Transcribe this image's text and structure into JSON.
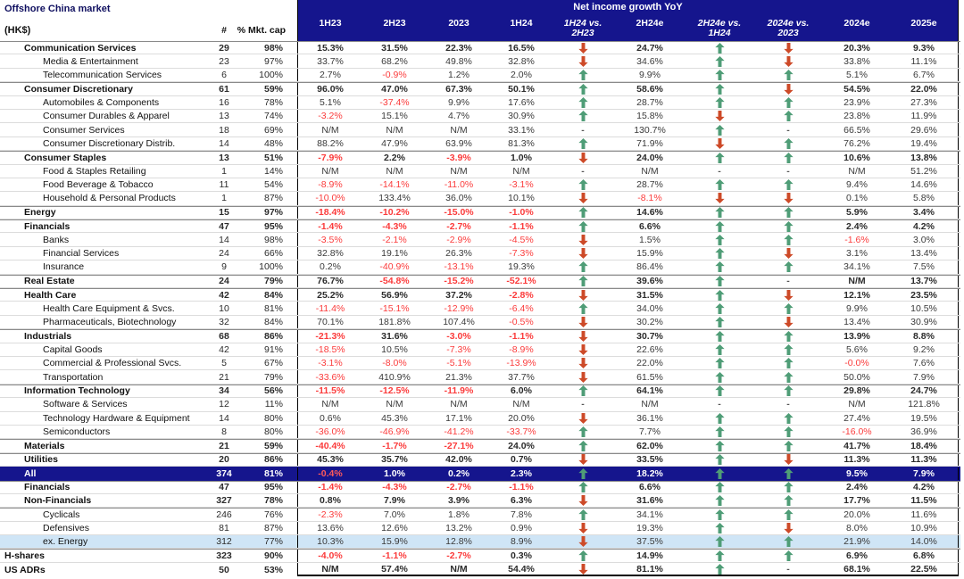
{
  "meta": {
    "title": "Offshore China market",
    "currency_note": "(HK$)",
    "count_header": "#",
    "mktcap_header": "% Mkt. cap",
    "group_header": "Net income growth YoY"
  },
  "colors": {
    "navy": "#15158d",
    "up_arrow_green": "#4f9d77",
    "down_arrow_red": "#cd4a28",
    "negative_red": "#fb3b3b",
    "highlight_light_blue": "#cfe5f6"
  },
  "columns": [
    "1H23",
    "2H23",
    "2023",
    "1H24",
    "1H24 vs.\n2H23",
    "2H24e",
    "2H24e vs.\n1H24",
    "2024e vs.\n2023",
    "2024e",
    "2025e"
  ],
  "vs_column_indexes": [
    4,
    6,
    7
  ],
  "rows": [
    {
      "label": "Communication Services",
      "indent": 1,
      "bold": true,
      "sep": true,
      "n": "29",
      "cap": "98%",
      "cells": [
        "15.3%",
        "31.5%",
        "22.3%",
        "16.5%",
        "down",
        "24.7%",
        "up",
        "down",
        "20.3%",
        "9.3%"
      ]
    },
    {
      "label": "Media & Entertainment",
      "indent": 2,
      "bold": false,
      "sep": false,
      "n": "23",
      "cap": "97%",
      "cells": [
        "33.7%",
        "68.2%",
        "49.8%",
        "32.8%",
        "down",
        "34.6%",
        "up",
        "down",
        "33.8%",
        "11.1%"
      ]
    },
    {
      "label": "Telecommunication Services",
      "indent": 2,
      "bold": false,
      "sep": false,
      "n": "6",
      "cap": "100%",
      "cells": [
        "2.7%",
        "-0.9%",
        "1.2%",
        "2.0%",
        "up",
        "9.9%",
        "up",
        "up",
        "5.1%",
        "6.7%"
      ]
    },
    {
      "label": "Consumer Discretionary",
      "indent": 1,
      "bold": true,
      "sep": true,
      "n": "61",
      "cap": "59%",
      "cells": [
        "96.0%",
        "47.0%",
        "67.3%",
        "50.1%",
        "up",
        "58.6%",
        "up",
        "down",
        "54.5%",
        "22.0%"
      ]
    },
    {
      "label": "Automobiles & Components",
      "indent": 2,
      "bold": false,
      "sep": false,
      "n": "16",
      "cap": "78%",
      "cells": [
        "5.1%",
        "-37.4%",
        "9.9%",
        "17.6%",
        "up",
        "28.7%",
        "up",
        "up",
        "23.9%",
        "27.3%"
      ]
    },
    {
      "label": "Consumer Durables & Apparel",
      "indent": 2,
      "bold": false,
      "sep": false,
      "n": "13",
      "cap": "74%",
      "cells": [
        "-3.2%",
        "15.1%",
        "4.7%",
        "30.9%",
        "up",
        "15.8%",
        "down",
        "up",
        "23.8%",
        "11.9%"
      ]
    },
    {
      "label": "Consumer Services",
      "indent": 2,
      "bold": false,
      "sep": false,
      "n": "18",
      "cap": "69%",
      "cells": [
        "N/M",
        "N/M",
        "N/M",
        "33.1%",
        "dash",
        "130.7%",
        "up",
        "dash",
        "66.5%",
        "29.6%"
      ]
    },
    {
      "label": "Consumer Discretionary Distrib.",
      "indent": 2,
      "bold": false,
      "sep": false,
      "n": "14",
      "cap": "48%",
      "cells": [
        "88.2%",
        "47.9%",
        "63.9%",
        "81.3%",
        "up",
        "71.9%",
        "down",
        "up",
        "76.2%",
        "19.4%"
      ]
    },
    {
      "label": "Consumer Staples",
      "indent": 1,
      "bold": true,
      "sep": true,
      "n": "13",
      "cap": "51%",
      "cells": [
        "-7.9%",
        "2.2%",
        "-3.9%",
        "1.0%",
        "down",
        "24.0%",
        "up",
        "up",
        "10.6%",
        "13.8%"
      ]
    },
    {
      "label": "Food & Staples Retailing",
      "indent": 2,
      "bold": false,
      "sep": false,
      "n": "1",
      "cap": "14%",
      "cells": [
        "N/M",
        "N/M",
        "N/M",
        "N/M",
        "dash",
        "N/M",
        "dash",
        "dash",
        "N/M",
        "51.2%"
      ]
    },
    {
      "label": "Food Beverage & Tobacco",
      "indent": 2,
      "bold": false,
      "sep": false,
      "n": "11",
      "cap": "54%",
      "cells": [
        "-8.9%",
        "-14.1%",
        "-11.0%",
        "-3.1%",
        "up",
        "28.7%",
        "up",
        "up",
        "9.4%",
        "14.6%"
      ]
    },
    {
      "label": "Household & Personal Products",
      "indent": 2,
      "bold": false,
      "sep": false,
      "n": "1",
      "cap": "87%",
      "cells": [
        "-10.0%",
        "133.4%",
        "36.0%",
        "10.1%",
        "down",
        "-8.1%",
        "down",
        "down",
        "0.1%",
        "5.8%"
      ]
    },
    {
      "label": "Energy",
      "indent": 1,
      "bold": true,
      "sep": true,
      "n": "15",
      "cap": "97%",
      "cells": [
        "-18.4%",
        "-10.2%",
        "-15.0%",
        "-1.0%",
        "up",
        "14.6%",
        "up",
        "up",
        "5.9%",
        "3.4%"
      ]
    },
    {
      "label": "Financials",
      "indent": 1,
      "bold": true,
      "sep": true,
      "n": "47",
      "cap": "95%",
      "cells": [
        "-1.4%",
        "-4.3%",
        "-2.7%",
        "-1.1%",
        "up",
        "6.6%",
        "up",
        "up",
        "2.4%",
        "4.2%"
      ]
    },
    {
      "label": "Banks",
      "indent": 2,
      "bold": false,
      "sep": false,
      "n": "14",
      "cap": "98%",
      "cells": [
        "-3.5%",
        "-2.1%",
        "-2.9%",
        "-4.5%",
        "down",
        "1.5%",
        "up",
        "up",
        "-1.6%",
        "3.0%"
      ]
    },
    {
      "label": "Financial Services",
      "indent": 2,
      "bold": false,
      "sep": false,
      "n": "24",
      "cap": "66%",
      "cells": [
        "32.8%",
        "19.1%",
        "26.3%",
        "-7.3%",
        "down",
        "15.9%",
        "up",
        "down",
        "3.1%",
        "13.4%"
      ]
    },
    {
      "label": "Insurance",
      "indent": 2,
      "bold": false,
      "sep": false,
      "n": "9",
      "cap": "100%",
      "cells": [
        "0.2%",
        "-40.9%",
        "-13.1%",
        "19.3%",
        "up",
        "86.4%",
        "up",
        "up",
        "34.1%",
        "7.5%"
      ]
    },
    {
      "label": "Real Estate",
      "indent": 1,
      "bold": true,
      "sep": true,
      "n": "24",
      "cap": "79%",
      "cells": [
        "76.7%",
        "-54.8%",
        "-15.2%",
        "-52.1%",
        "up",
        "39.6%",
        "up",
        "dash",
        "N/M",
        "13.7%"
      ]
    },
    {
      "label": "Health Care",
      "indent": 1,
      "bold": true,
      "sep": true,
      "n": "42",
      "cap": "84%",
      "cells": [
        "25.2%",
        "56.9%",
        "37.2%",
        "-2.8%",
        "down",
        "31.5%",
        "up",
        "down",
        "12.1%",
        "23.5%"
      ]
    },
    {
      "label": "Health Care Equipment & Svcs.",
      "indent": 2,
      "bold": false,
      "sep": false,
      "n": "10",
      "cap": "81%",
      "cells": [
        "-11.4%",
        "-15.1%",
        "-12.9%",
        "-6.4%",
        "up",
        "34.0%",
        "up",
        "up",
        "9.9%",
        "10.5%"
      ]
    },
    {
      "label": "Pharmaceuticals, Biotechnology",
      "indent": 2,
      "bold": false,
      "sep": false,
      "n": "32",
      "cap": "84%",
      "cells": [
        "70.1%",
        "181.8%",
        "107.4%",
        "-0.5%",
        "down",
        "30.2%",
        "up",
        "down",
        "13.4%",
        "30.9%"
      ]
    },
    {
      "label": "Industrials",
      "indent": 1,
      "bold": true,
      "sep": true,
      "n": "68",
      "cap": "86%",
      "cells": [
        "-21.3%",
        "31.6%",
        "-3.0%",
        "-1.1%",
        "down",
        "30.7%",
        "up",
        "up",
        "13.9%",
        "8.8%"
      ]
    },
    {
      "label": "Capital Goods",
      "indent": 2,
      "bold": false,
      "sep": false,
      "n": "42",
      "cap": "91%",
      "cells": [
        "-18.5%",
        "10.5%",
        "-7.3%",
        "-8.9%",
        "down",
        "22.6%",
        "up",
        "up",
        "5.6%",
        "9.2%"
      ]
    },
    {
      "label": "Commercial & Professional Svcs.",
      "indent": 2,
      "bold": false,
      "sep": false,
      "n": "5",
      "cap": "67%",
      "cells": [
        "-3.1%",
        "-8.0%",
        "-5.1%",
        "-13.9%",
        "down",
        "22.0%",
        "up",
        "up",
        "-0.0%",
        "7.6%"
      ]
    },
    {
      "label": "Transportation",
      "indent": 2,
      "bold": false,
      "sep": false,
      "n": "21",
      "cap": "79%",
      "cells": [
        "-33.6%",
        "410.9%",
        "21.3%",
        "37.7%",
        "down",
        "61.5%",
        "up",
        "up",
        "50.0%",
        "7.9%"
      ]
    },
    {
      "label": "Information Technology",
      "indent": 1,
      "bold": true,
      "sep": true,
      "n": "34",
      "cap": "56%",
      "cells": [
        "-11.5%",
        "-12.5%",
        "-11.9%",
        "6.0%",
        "up",
        "64.1%",
        "up",
        "up",
        "29.8%",
        "24.7%"
      ]
    },
    {
      "label": "Software & Services",
      "indent": 2,
      "bold": false,
      "sep": false,
      "n": "12",
      "cap": "11%",
      "cells": [
        "N/M",
        "N/M",
        "N/M",
        "N/M",
        "dash",
        "N/M",
        "dash",
        "dash",
        "N/M",
        "121.8%"
      ]
    },
    {
      "label": "Technology Hardware & Equipment",
      "indent": 2,
      "bold": false,
      "sep": false,
      "n": "14",
      "cap": "80%",
      "cells": [
        "0.6%",
        "45.3%",
        "17.1%",
        "20.0%",
        "down",
        "36.1%",
        "up",
        "up",
        "27.4%",
        "19.5%"
      ]
    },
    {
      "label": "Semiconductors",
      "indent": 2,
      "bold": false,
      "sep": false,
      "n": "8",
      "cap": "80%",
      "cells": [
        "-36.0%",
        "-46.9%",
        "-41.2%",
        "-33.7%",
        "up",
        "7.7%",
        "up",
        "up",
        "-16.0%",
        "36.9%"
      ]
    },
    {
      "label": "Materials",
      "indent": 1,
      "bold": true,
      "sep": true,
      "n": "21",
      "cap": "59%",
      "cells": [
        "-40.4%",
        "-1.7%",
        "-27.1%",
        "24.0%",
        "up",
        "62.0%",
        "up",
        "up",
        "41.7%",
        "18.4%"
      ]
    },
    {
      "label": "Utilities",
      "indent": 1,
      "bold": true,
      "sep": true,
      "n": "20",
      "cap": "86%",
      "cells": [
        "45.3%",
        "35.7%",
        "42.0%",
        "0.7%",
        "down",
        "33.5%",
        "up",
        "down",
        "11.3%",
        "11.3%"
      ]
    },
    {
      "label": "All",
      "indent": 1,
      "bold": true,
      "sep": true,
      "style": "all",
      "n": "374",
      "cap": "81%",
      "cells": [
        "-0.4%",
        "1.0%",
        "0.2%",
        "2.3%",
        "up",
        "18.2%",
        "up",
        "up",
        "9.5%",
        "7.9%"
      ]
    },
    {
      "label": "Financials",
      "indent": 1,
      "bold": true,
      "sep": true,
      "n": "47",
      "cap": "95%",
      "cells": [
        "-1.4%",
        "-4.3%",
        "-2.7%",
        "-1.1%",
        "up",
        "6.6%",
        "up",
        "up",
        "2.4%",
        "4.2%"
      ]
    },
    {
      "label": "Non-Financials",
      "indent": 1,
      "bold": true,
      "sep": false,
      "n": "327",
      "cap": "78%",
      "cells": [
        "0.8%",
        "7.9%",
        "3.9%",
        "6.3%",
        "down",
        "31.6%",
        "up",
        "up",
        "17.7%",
        "11.5%"
      ]
    },
    {
      "label": "Cyclicals",
      "indent": 2,
      "bold": false,
      "sep": true,
      "n": "246",
      "cap": "76%",
      "cells": [
        "-2.3%",
        "7.0%",
        "1.8%",
        "7.8%",
        "up",
        "34.1%",
        "up",
        "up",
        "20.0%",
        "11.6%"
      ]
    },
    {
      "label": "Defensives",
      "indent": 2,
      "bold": false,
      "sep": false,
      "n": "81",
      "cap": "87%",
      "cells": [
        "13.6%",
        "12.6%",
        "13.2%",
        "0.9%",
        "down",
        "19.3%",
        "up",
        "down",
        "8.0%",
        "10.9%"
      ]
    },
    {
      "label": "ex. Energy",
      "indent": 2,
      "bold": false,
      "sep": false,
      "style": "exenergy",
      "n": "312",
      "cap": "77%",
      "cells": [
        "10.3%",
        "15.9%",
        "12.8%",
        "8.9%",
        "down",
        "37.5%",
        "up",
        "up",
        "21.9%",
        "14.0%"
      ]
    },
    {
      "label": "H-shares",
      "indent": 0,
      "bold": true,
      "sep": true,
      "n": "323",
      "cap": "90%",
      "cells": [
        "-4.0%",
        "-1.1%",
        "-2.7%",
        "0.3%",
        "up",
        "14.9%",
        "up",
        "up",
        "6.9%",
        "6.8%"
      ]
    },
    {
      "label": "US ADRs",
      "indent": 0,
      "bold": true,
      "sep": false,
      "n": "50",
      "cap": "53%",
      "cells": [
        "N/M",
        "57.4%",
        "N/M",
        "54.4%",
        "down",
        "81.1%",
        "up",
        "dash",
        "68.1%",
        "22.5%"
      ]
    }
  ]
}
